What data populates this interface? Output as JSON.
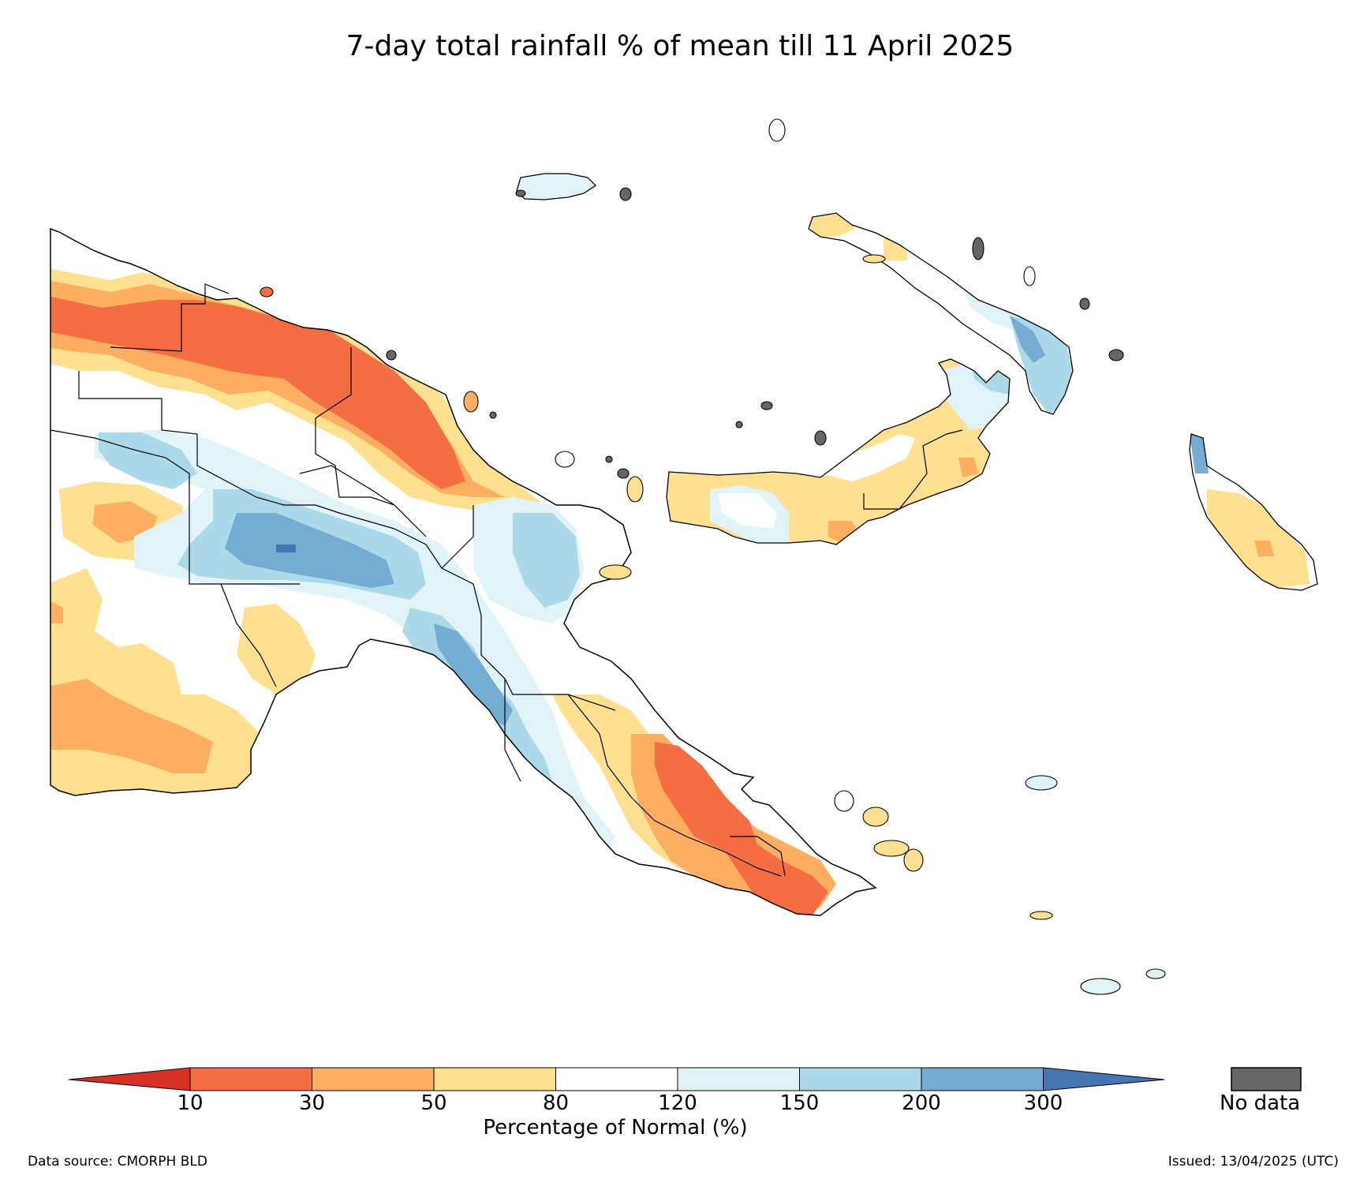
{
  "title": "7-day total rainfall % of mean till 11 April 2025",
  "legend": {
    "label": "Percentage of Normal (%)",
    "ticks": [
      "10",
      "30",
      "50",
      "80",
      "120",
      "150",
      "200",
      "300"
    ],
    "bins": [
      {
        "range": "<10",
        "color": "#d73027"
      },
      {
        "range": "10-30",
        "color": "#f46d43"
      },
      {
        "range": "30-50",
        "color": "#fdae61"
      },
      {
        "range": "50-80",
        "color": "#fee090"
      },
      {
        "range": "80-120",
        "color": "#ffffff"
      },
      {
        "range": "120-150",
        "color": "#e0f3f8"
      },
      {
        "range": "150-200",
        "color": "#abd9e9"
      },
      {
        "range": "200-300",
        "color": "#74add1"
      },
      {
        "range": ">300",
        "color": "#4575b4"
      }
    ],
    "no_data_label": "No data",
    "no_data_color": "#666666"
  },
  "footer": {
    "source": "Data source: CMORPH BLD",
    "issued": "Issued: 13/04/2025 (UTC)"
  }
}
